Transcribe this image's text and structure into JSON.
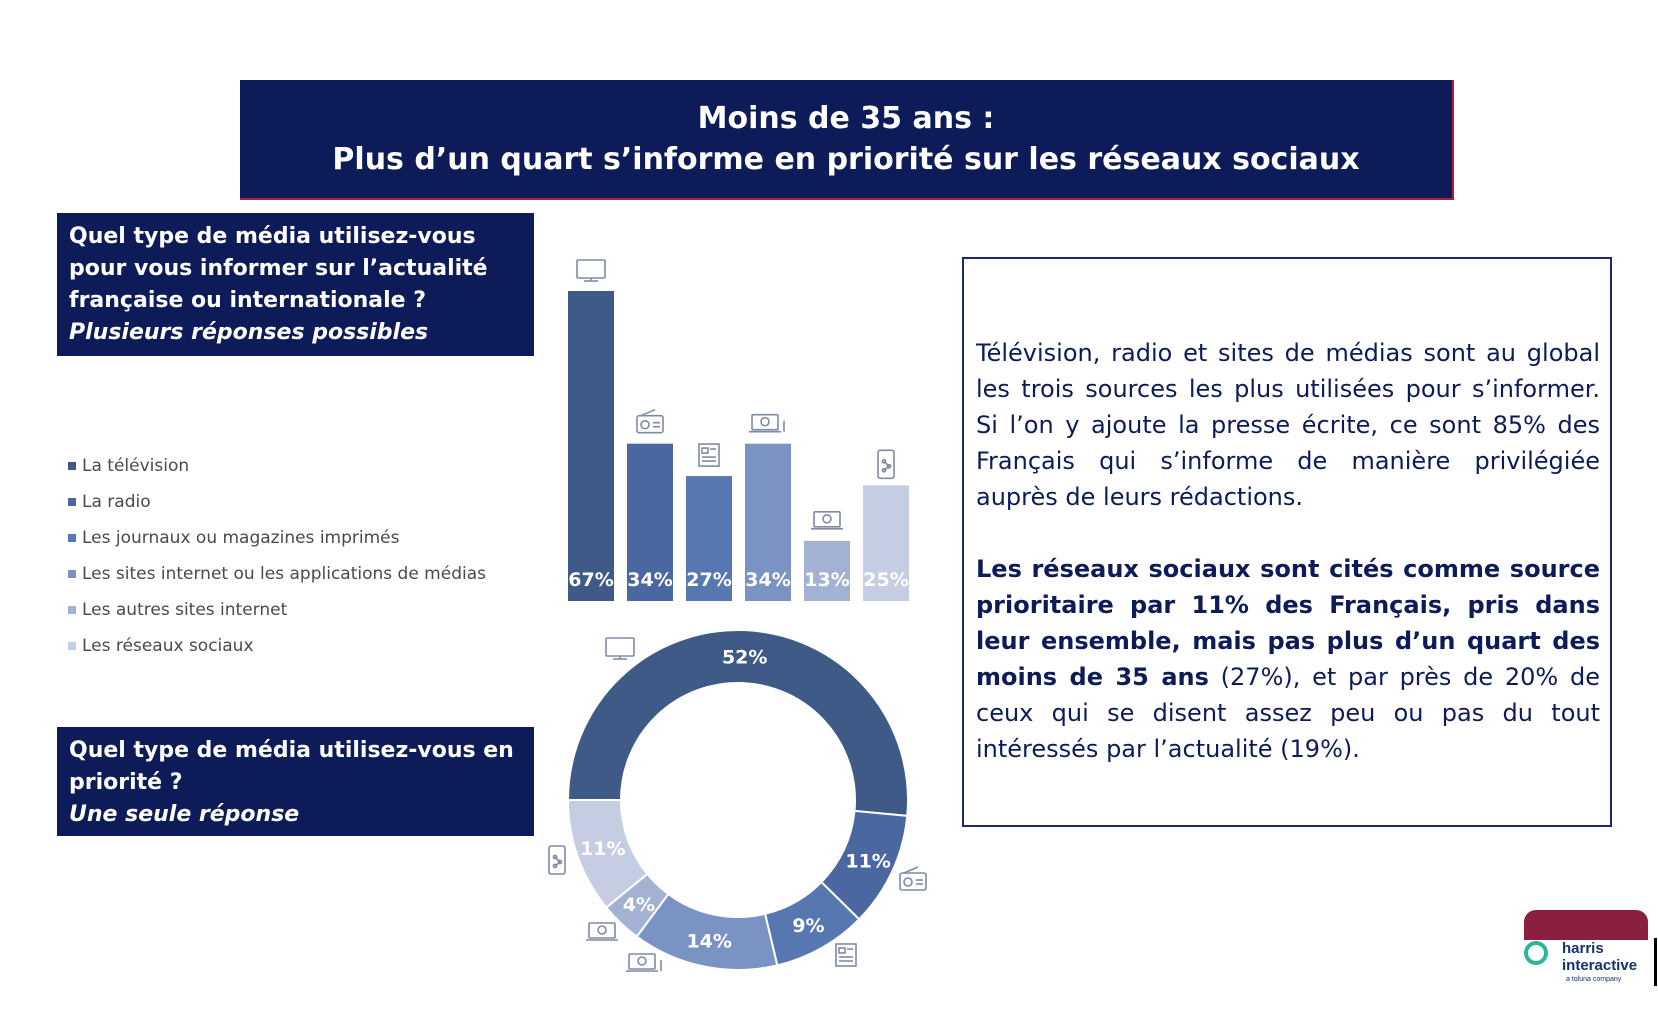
{
  "header": {
    "line1": "Moins de 35 ans :",
    "line2": "Plus d’un quart s’informe en priorité sur les réseaux sociaux"
  },
  "question1": {
    "text": "Quel type de média utilisez-vous  pour vous informer sur l’actualité française ou internationale ?",
    "note": "Plusieurs réponses possibles"
  },
  "question2": {
    "text": "Quel type de média utilisez-vous en priorité ?",
    "note": "Une seule réponse"
  },
  "legend": [
    {
      "label": "La télévision",
      "color": "#3f5a86"
    },
    {
      "label": "La radio",
      "color": "#4a67a0"
    },
    {
      "label": "Les journaux ou magazines imprimés",
      "color": "#5677b0"
    },
    {
      "label": "Les sites internet ou les applications de médias",
      "color": "#7b93c2"
    },
    {
      "label": "Les autres sites internet",
      "color": "#a3b2d2"
    },
    {
      "label": "Les réseaux sociaux",
      "color": "#c5cde2"
    }
  ],
  "icons": [
    "tv-icon",
    "radio-icon",
    "newspaper-icon",
    "media-apps-icon",
    "web-icon",
    "smartphone-icon"
  ],
  "chart_data": [
    {
      "type": "bar",
      "categories": [
        "La télévision",
        "La radio",
        "Les journaux ou magazines imprimés",
        "Les sites internet ou les applications de médias",
        "Les autres sites internet",
        "Les réseaux sociaux"
      ],
      "values": [
        67,
        34,
        27,
        34,
        13,
        25
      ],
      "labels": [
        "67%",
        "34%",
        "27%",
        "34%",
        "13%",
        "25%"
      ],
      "colors": [
        "#3f5a86",
        "#4a67a0",
        "#5677b0",
        "#7b93c2",
        "#a3b2d2",
        "#c5cde2"
      ],
      "ylim": [
        0,
        67
      ]
    },
    {
      "type": "pie",
      "categories": [
        "La télévision",
        "La radio",
        "Les journaux ou magazines imprimés",
        "Les sites internet ou les applications de médias",
        "Les autres sites internet",
        "Les réseaux sociaux"
      ],
      "values": [
        52,
        11,
        9,
        14,
        4,
        11
      ],
      "labels": [
        "52%",
        "11%",
        "9%",
        "14%",
        "4%",
        "11%"
      ],
      "colors": [
        "#3f5a86",
        "#4a67a0",
        "#5677b0",
        "#7b93c2",
        "#a3b2d2",
        "#c5cde2"
      ]
    }
  ],
  "analysis": {
    "p1": "Télévision, radio et sites de médias sont au global les trois sources les plus utilisées pour s’informer. Si l’on y ajoute la presse écrite, ce sont 85% des Français qui s’informe de manière privilégiée auprès de leurs rédactions.",
    "p2_bold": "Les réseaux sociaux sont cités comme source prioritaire par 11% des Français, pris dans leur ensemble, mais pas plus d’un quart des moins de 35 ans",
    "p2_rest": " (27%), et par près de 20% de ceux qui se disent assez peu ou pas du tout intéressés par l’actualité (19%)."
  },
  "logo": {
    "name_line1": "harris",
    "name_line2": "interactive",
    "tagline": "a toluna company",
    "brand_color": "#8a1f3f",
    "ring_color": "#2fb59a"
  }
}
